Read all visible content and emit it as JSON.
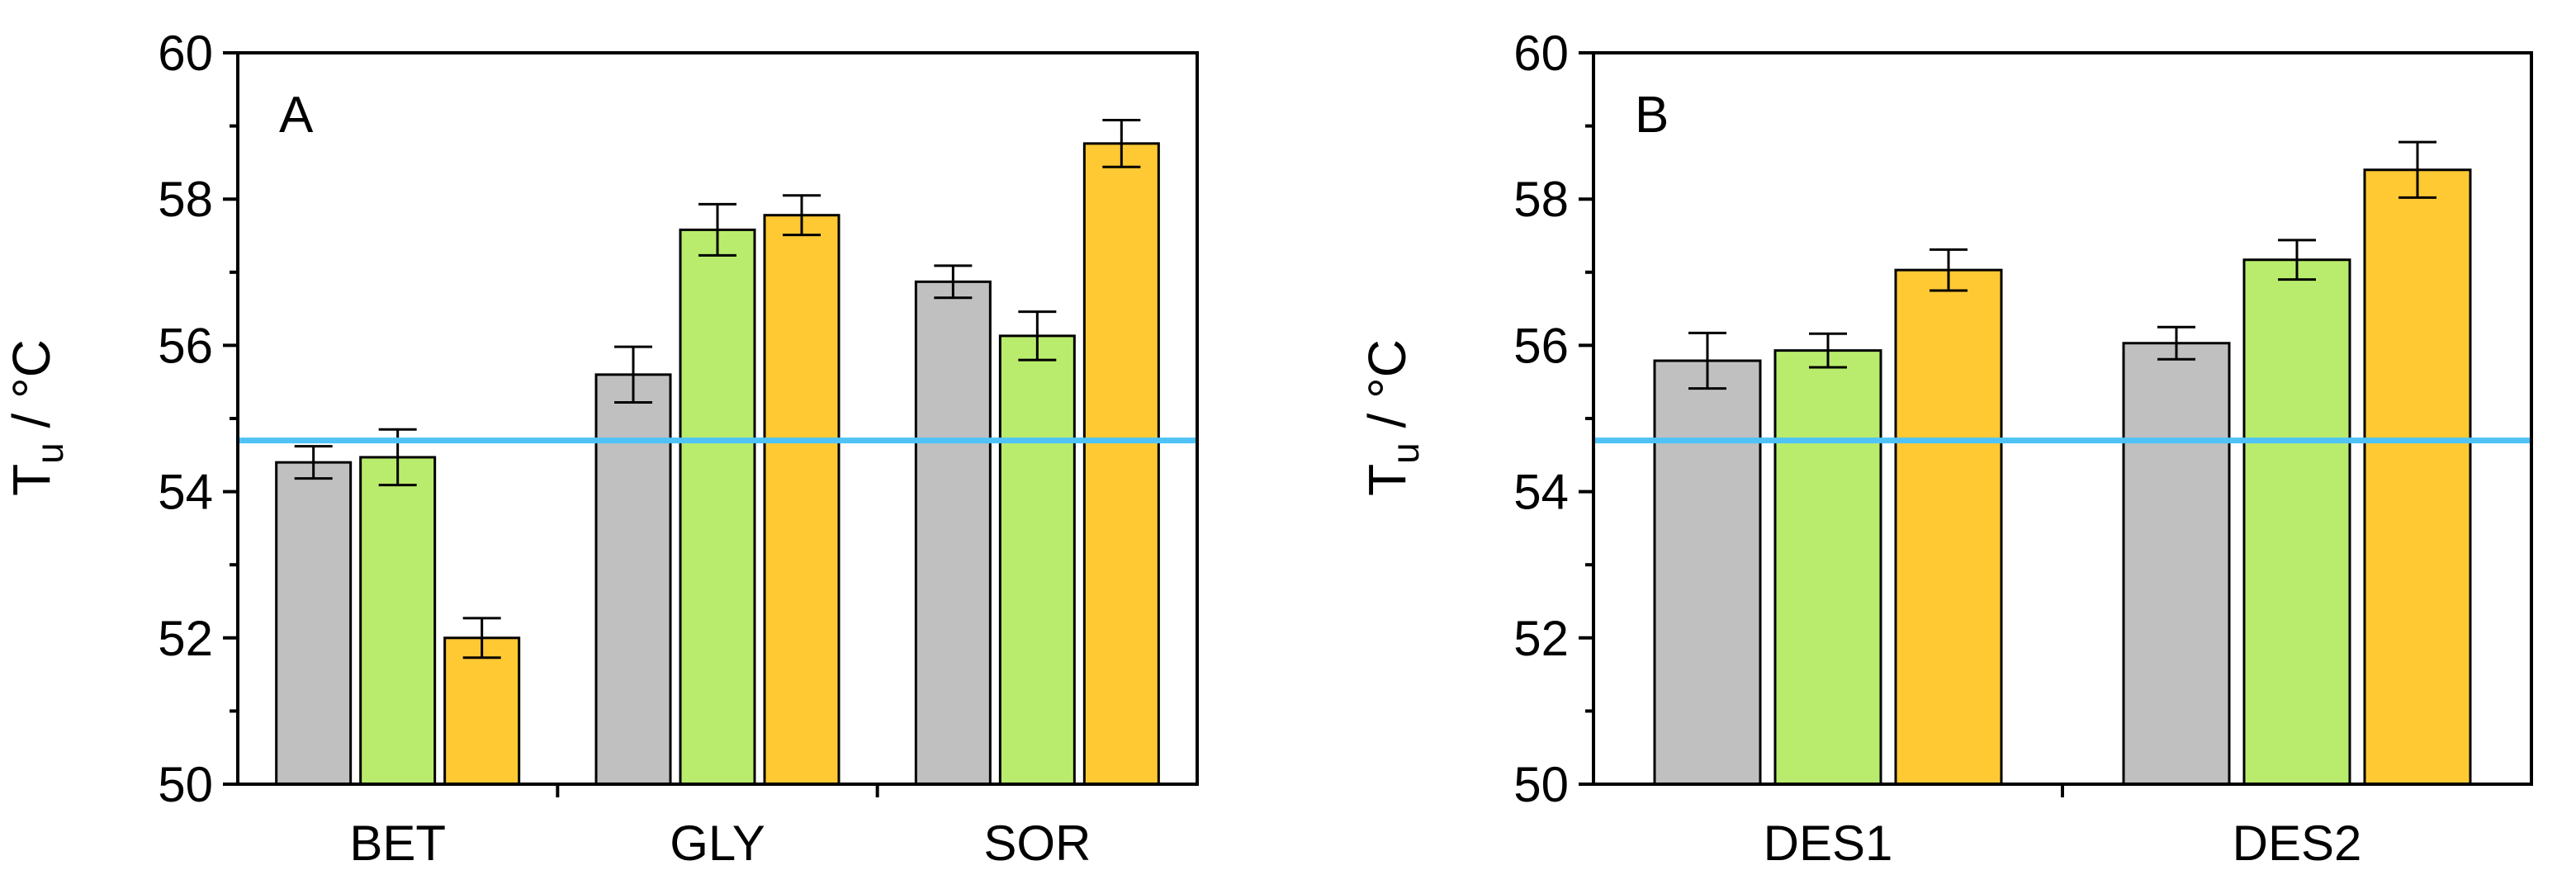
{
  "chart_data": [
    {
      "type": "bar",
      "panel_label": "A",
      "ylabel": "T",
      "ylabel_sub": "u",
      "ylabel_unit": " / °C",
      "ylim": [
        50,
        60
      ],
      "yticks": [
        "50",
        "52",
        "54",
        "56",
        "58",
        "60"
      ],
      "reference_line": 54.7,
      "reference_color": "#4fc3f7",
      "categories": [
        "BET",
        "GLY",
        "SOR"
      ],
      "series": [
        {
          "name": "gray",
          "color": "#c0c0c0",
          "values": [
            54.4,
            55.6,
            56.87
          ],
          "errors": [
            0.22,
            0.38,
            0.22
          ]
        },
        {
          "name": "green",
          "color": "#b9ec6c",
          "values": [
            54.47,
            57.58,
            56.13
          ],
          "errors": [
            0.38,
            0.35,
            0.33
          ]
        },
        {
          "name": "orange",
          "color": "#ffc933",
          "values": [
            52.0,
            57.78,
            58.76
          ],
          "errors": [
            0.27,
            0.27,
            0.32
          ]
        }
      ]
    },
    {
      "type": "bar",
      "panel_label": "B",
      "ylabel": "T",
      "ylabel_sub": "u",
      "ylabel_unit": " / °C",
      "ylim": [
        50,
        60
      ],
      "yticks": [
        "50",
        "52",
        "54",
        "56",
        "58",
        "60"
      ],
      "reference_line": 54.7,
      "reference_color": "#4fc3f7",
      "categories": [
        "DES1",
        "DES2"
      ],
      "series": [
        {
          "name": "gray",
          "color": "#c0c0c0",
          "values": [
            55.79,
            56.03
          ],
          "errors": [
            0.38,
            0.22
          ]
        },
        {
          "name": "green",
          "color": "#b9ec6c",
          "values": [
            55.93,
            57.17
          ],
          "errors": [
            0.23,
            0.27
          ]
        },
        {
          "name": "orange",
          "color": "#ffc933",
          "values": [
            57.03,
            58.4
          ],
          "errors": [
            0.28,
            0.38
          ]
        }
      ]
    }
  ]
}
